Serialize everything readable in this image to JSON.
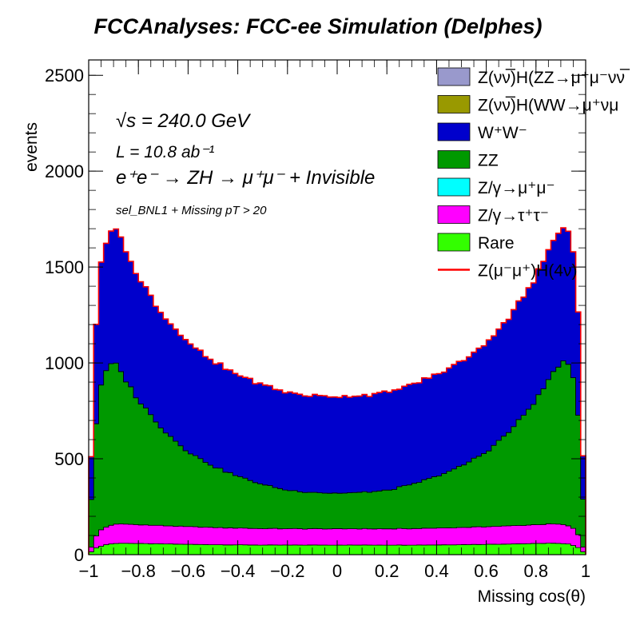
{
  "chart_data": {
    "type": "area",
    "title": "FCCAnalyses: FCC-ee Simulation (Delphes)",
    "xlabel": "Missing cos(θ)",
    "ylabel": "events",
    "xlim": [
      -1,
      1
    ],
    "ylim": [
      0,
      2580
    ],
    "x_ticks": [
      -1,
      -0.8,
      -0.6,
      -0.4,
      -0.2,
      0,
      0.2,
      0.4,
      0.6,
      0.8,
      1
    ],
    "x_tick_labels": [
      "−1",
      "−0.8",
      "−0.6",
      "−0.4",
      "−0.2",
      "0",
      "0.2",
      "0.4",
      "0.6",
      "0.8",
      "1"
    ],
    "y_ticks": [
      0,
      500,
      1000,
      1500,
      2000,
      2500
    ],
    "y_tick_labels": [
      "0",
      "500",
      "1000",
      "1500",
      "2000",
      "2500"
    ],
    "stacked": true,
    "x": [
      -0.98,
      -0.95,
      -0.92,
      -0.9,
      -0.85,
      -0.8,
      -0.7,
      -0.6,
      -0.5,
      -0.4,
      -0.3,
      -0.2,
      -0.1,
      0.0,
      0.1,
      0.2,
      0.3,
      0.4,
      0.5,
      0.6,
      0.7,
      0.8,
      0.85,
      0.9,
      0.93,
      0.96,
      0.98
    ],
    "series": [
      {
        "name": "Rare",
        "color": "#33ff00",
        "values": [
          30,
          45,
          55,
          58,
          60,
          58,
          56,
          54,
          52,
          51,
          50,
          50,
          50,
          50,
          50,
          50,
          50,
          51,
          52,
          54,
          56,
          58,
          60,
          58,
          55,
          45,
          30
        ]
      },
      {
        "name": "Z/γ→τ⁺τ⁻",
        "color": "#ff00ff",
        "values": [
          50,
          85,
          95,
          100,
          100,
          98,
          95,
          92,
          90,
          88,
          86,
          85,
          85,
          85,
          85,
          85,
          86,
          88,
          90,
          92,
          95,
          98,
          100,
          100,
          95,
          85,
          50
        ]
      },
      {
        "name": "Z/γ→μ⁺μ⁻",
        "color": "#00ffff",
        "values": [
          0,
          0,
          0,
          0,
          0,
          0,
          0,
          0,
          0,
          0,
          0,
          0,
          0,
          0,
          0,
          0,
          0,
          0,
          0,
          0,
          0,
          0,
          0,
          0,
          0,
          0,
          0
        ]
      },
      {
        "name": "ZZ",
        "color": "#009900",
        "values": [
          500,
          760,
          830,
          850,
          750,
          650,
          500,
          390,
          320,
          270,
          230,
          200,
          190,
          185,
          190,
          200,
          230,
          270,
          320,
          390,
          500,
          650,
          750,
          850,
          830,
          760,
          500
        ]
      },
      {
        "name": "W⁺W⁻",
        "color": "#0000cc",
        "values": [
          450,
          640,
          690,
          710,
          680,
          640,
          600,
          570,
          545,
          530,
          520,
          510,
          505,
          505,
          505,
          510,
          520,
          530,
          545,
          570,
          600,
          640,
          680,
          710,
          690,
          640,
          450
        ]
      },
      {
        "name": "Z(νν̅)H(WW→μ⁺νμ⁻ν)",
        "color": "#999900",
        "values": [
          0,
          0,
          0,
          0,
          0,
          0,
          0,
          0,
          0,
          0,
          0,
          0,
          0,
          0,
          0,
          0,
          0,
          0,
          0,
          0,
          0,
          0,
          0,
          0,
          0,
          0,
          0
        ]
      },
      {
        "name": "Z(νν̅)H(ZZ→μ⁺μ⁻νν̅)",
        "color": "#9999cc",
        "values": [
          0,
          0,
          0,
          0,
          0,
          0,
          0,
          0,
          0,
          0,
          0,
          0,
          0,
          0,
          0,
          0,
          0,
          0,
          0,
          0,
          0,
          0,
          0,
          0,
          0,
          0,
          0
        ]
      }
    ],
    "signal": {
      "name": "Z(μ⁻μ⁺)H(4ν)",
      "color": "#ff0000",
      "style": "line"
    },
    "legend_position": "top-right",
    "legend": [
      {
        "label": "Z(νν̅)H(ZZ→μ⁺μ⁻νν̅",
        "color": "#9999cc",
        "kind": "box"
      },
      {
        "label": "Z(νν̅)H(WW→μ⁺νμ",
        "color": "#999900",
        "kind": "box"
      },
      {
        "label": "W⁺W⁻",
        "color": "#0000cc",
        "kind": "box"
      },
      {
        "label": "ZZ",
        "color": "#009900",
        "kind": "box"
      },
      {
        "label": "Z/γ→μ⁺μ⁻",
        "color": "#00ffff",
        "kind": "box"
      },
      {
        "label": "Z/γ→τ⁺τ⁻",
        "color": "#ff00ff",
        "kind": "box"
      },
      {
        "label": "Rare",
        "color": "#33ff00",
        "kind": "box"
      },
      {
        "label": "Z(μ⁻μ⁺)H(4ν)",
        "color": "#ff0000",
        "kind": "line"
      }
    ],
    "annotations": {
      "sqrt_s": "√s = 240.0 GeV",
      "lumi": "L = 10.8 ab⁻¹",
      "process": "e⁺e⁻ → ZH → μ⁺μ⁻ + Invisible",
      "selection": "sel_BNL1 + Missing pT > 20"
    },
    "grid": false
  }
}
